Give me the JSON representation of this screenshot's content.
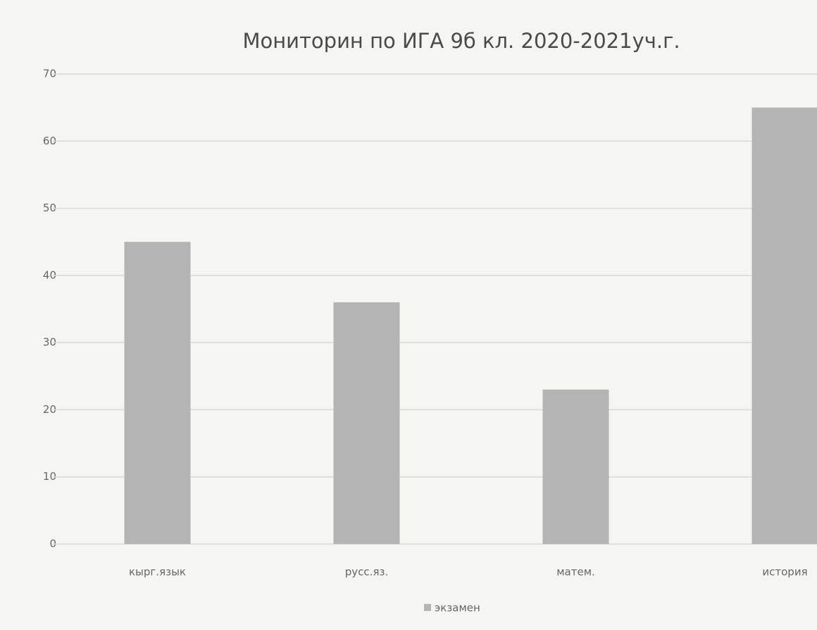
{
  "chart_data": {
    "type": "bar",
    "title": "Мониторин по ИГА 9б кл. 2020-2021уч.г.",
    "categories": [
      "кырг.язык",
      "русс.яз.",
      "матем.",
      "история"
    ],
    "series": [
      {
        "name": "экзамен",
        "color": "#b4b4b4",
        "values": [
          45,
          36,
          23,
          65
        ]
      }
    ],
    "ylim": [
      0,
      70
    ],
    "yticks": [
      0,
      10,
      20,
      30,
      40,
      50,
      60,
      70
    ],
    "grid": true,
    "legend": "bottom"
  }
}
